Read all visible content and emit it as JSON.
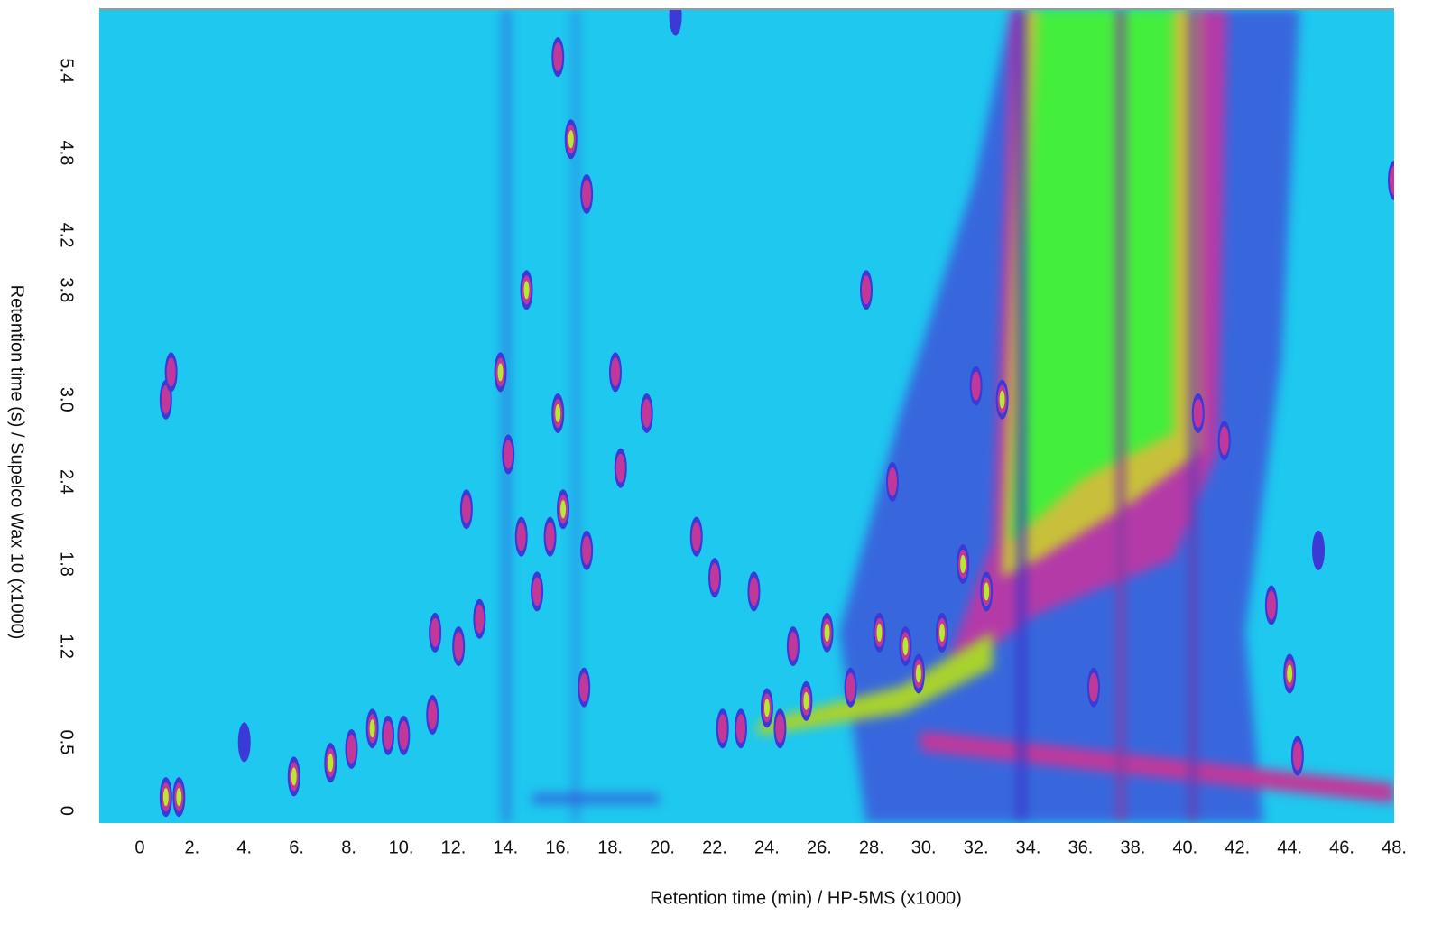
{
  "chart_data": {
    "type": "heatmap",
    "xlabel": "Retention time  (min) / HP-5MS (x1000)",
    "ylabel": "Retention time (s) / Supelco Wax 10 (x1000)",
    "xlim": [
      -1.55,
      48
    ],
    "ylim": [
      -0.09,
      5.85
    ],
    "xticks": [
      0,
      {
        "value": 2,
        "label": "2."
      },
      {
        "value": 4,
        "label": "4."
      },
      {
        "value": 6,
        "label": "6."
      },
      {
        "value": 8,
        "label": "8."
      },
      {
        "value": 10,
        "label": "10."
      },
      {
        "value": 12,
        "label": "12."
      },
      {
        "value": 14,
        "label": "14."
      },
      {
        "value": 16,
        "label": "16."
      },
      {
        "value": 18,
        "label": "18."
      },
      {
        "value": 20,
        "label": "20."
      },
      {
        "value": 22,
        "label": "22."
      },
      {
        "value": 24,
        "label": "24."
      },
      {
        "value": 26,
        "label": "26."
      },
      {
        "value": 28,
        "label": "28."
      },
      {
        "value": 30,
        "label": "30."
      },
      {
        "value": 32,
        "label": "32."
      },
      {
        "value": 34,
        "label": "34."
      },
      {
        "value": 36,
        "label": "36."
      },
      {
        "value": 38,
        "label": "38."
      },
      {
        "value": 40,
        "label": "40."
      },
      {
        "value": 42,
        "label": "42."
      },
      {
        "value": 44,
        "label": "44."
      },
      {
        "value": 46,
        "label": "46."
      },
      {
        "value": 48,
        "label": "48."
      }
    ],
    "yticks": [
      0,
      0.5,
      1.2,
      1.8,
      2.4,
      {
        "value": 3.0,
        "label": "3.0"
      },
      3.8,
      4.2,
      4.8,
      5.4
    ],
    "background": "#1ec8ef",
    "colors": [
      "#3b3ad6",
      "#c2389a",
      "#b6ea2e"
    ],
    "peaks": {
      "x": [
        1.0,
        1.5,
        1.0,
        1.2,
        4.0,
        5.9,
        7.3,
        8.1,
        8.9,
        9.5,
        10.1,
        11.2,
        11.3,
        12.2,
        13.0,
        12.5,
        13.8,
        14.1,
        14.8,
        14.6,
        15.2,
        15.7,
        16.0,
        16.2,
        16.5,
        16.0,
        17.1,
        17.1,
        17.0,
        18.2,
        18.4,
        19.4,
        20.5,
        21.3,
        22.0,
        22.3,
        23.0,
        23.5,
        24.0,
        24.5,
        25.0,
        25.5,
        26.3,
        27.2,
        27.8,
        28.3,
        28.8,
        29.3,
        29.8,
        30.7,
        31.5,
        32.4,
        33.0,
        32.0,
        36.5,
        40.5,
        41.5,
        43.3,
        44.0,
        44.3,
        45.1,
        48.0
      ],
      "y": [
        0.1,
        0.1,
        3.0,
        3.2,
        0.5,
        0.25,
        0.35,
        0.45,
        0.6,
        0.55,
        0.55,
        0.7,
        1.3,
        1.2,
        1.4,
        2.2,
        3.2,
        2.6,
        3.8,
        2.0,
        1.6,
        2.0,
        2.9,
        2.2,
        4.9,
        5.5,
        4.5,
        1.9,
        0.9,
        3.2,
        2.5,
        2.9,
        5.8,
        2.0,
        1.7,
        0.6,
        0.6,
        1.6,
        0.75,
        0.6,
        1.2,
        0.8,
        1.3,
        0.9,
        3.8,
        1.3,
        2.4,
        1.2,
        1.0,
        1.3,
        1.8,
        1.6,
        3.0,
        3.1,
        0.9,
        2.9,
        2.7,
        1.5,
        1.0,
        0.4,
        1.9,
        4.6
      ],
      "intensity": [
        3,
        3,
        2,
        2,
        1,
        3,
        3,
        2,
        3,
        2,
        2,
        2,
        2,
        2,
        2,
        2,
        3,
        2,
        3,
        2,
        2,
        2,
        3,
        3,
        3,
        2,
        2,
        2,
        2,
        2,
        2,
        2,
        1,
        2,
        2,
        2,
        2,
        2,
        3,
        2,
        2,
        3,
        3,
        2,
        2,
        3,
        2,
        3,
        3,
        3,
        3,
        3,
        3,
        2,
        2,
        2,
        2,
        2,
        3,
        2,
        1,
        2
      ]
    }
  }
}
